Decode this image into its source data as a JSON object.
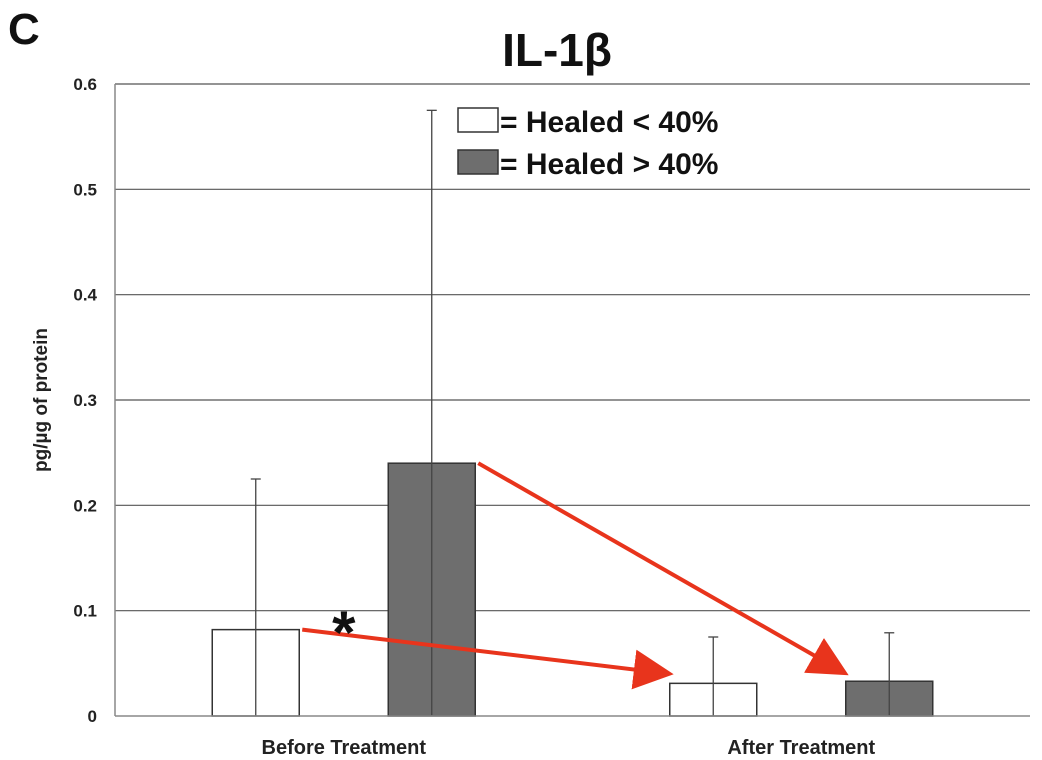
{
  "panel_label": "C",
  "chart_data": {
    "type": "bar",
    "title": "IL-1β",
    "xlabel": "",
    "ylabel": "pg/µg of protein",
    "ylim": [
      0,
      0.6
    ],
    "yticks": [
      "0",
      "0.1",
      "0.2",
      "0.3",
      "0.4",
      "0.5",
      "0.6"
    ],
    "grid": true,
    "legend_position": "top-right",
    "categories": [
      "Before Treatment",
      "After Treatment"
    ],
    "series": [
      {
        "name": "= Healed < 40%",
        "color": "#ffffff",
        "values": [
          0.082,
          0.031
        ],
        "error_upper": [
          0.225,
          0.075
        ]
      },
      {
        "name": "= Healed > 40%",
        "color": "#6e6e6e",
        "values": [
          0.24,
          0.033
        ],
        "error_upper": [
          0.575,
          0.079
        ]
      }
    ],
    "annotations": [
      {
        "text": "*",
        "category": "Before Treatment"
      }
    ],
    "arrows": [
      {
        "from_series": "= Healed < 40%",
        "from_category": "Before Treatment",
        "to_series": "= Healed < 40%",
        "to_category": "After Treatment",
        "color": "#e8341c"
      },
      {
        "from_series": "= Healed > 40%",
        "from_category": "Before Treatment",
        "to_series": "= Healed > 40%",
        "to_category": "After Treatment",
        "color": "#e8341c"
      }
    ]
  }
}
